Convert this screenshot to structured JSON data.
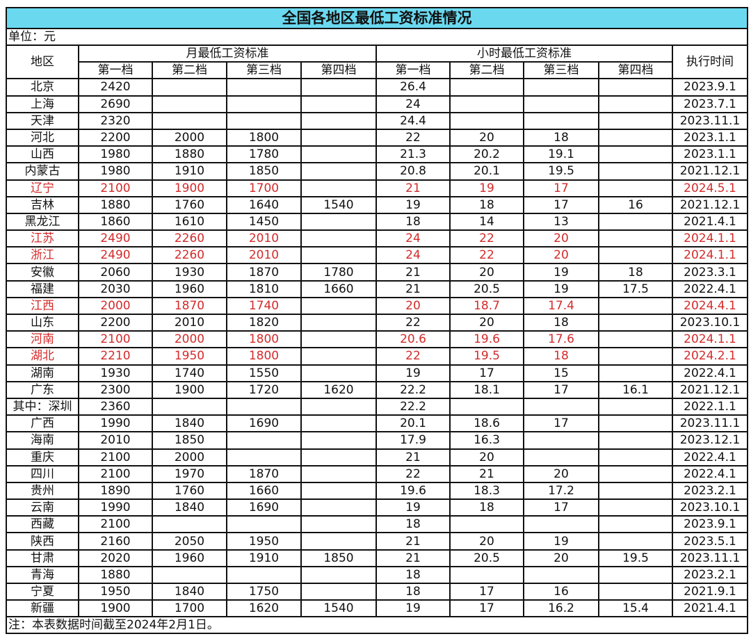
{
  "title": "全国各地区最低工资标准情况",
  "unit": "单位：元",
  "headers": {
    "region": "地区",
    "monthly": "月最低工资标准",
    "hourly": "小时最低工资标准",
    "date": "执行时间",
    "tiers": [
      "第一档",
      "第二档",
      "第三档",
      "第四档"
    ]
  },
  "highlight_color": "#d42a2a",
  "rows": [
    {
      "region": "北京",
      "monthly": [
        "2420",
        "",
        "",
        ""
      ],
      "hourly": [
        "26.4",
        "",
        "",
        ""
      ],
      "date": "2023.9.1",
      "highlight": false
    },
    {
      "region": "上海",
      "monthly": [
        "2690",
        "",
        "",
        ""
      ],
      "hourly": [
        "24",
        "",
        "",
        ""
      ],
      "date": "2023.7.1",
      "highlight": false
    },
    {
      "region": "天津",
      "monthly": [
        "2320",
        "",
        "",
        ""
      ],
      "hourly": [
        "24.4",
        "",
        "",
        ""
      ],
      "date": "2023.11.1",
      "highlight": false
    },
    {
      "region": "河北",
      "monthly": [
        "2200",
        "2000",
        "1800",
        ""
      ],
      "hourly": [
        "22",
        "20",
        "18",
        ""
      ],
      "date": "2023.1.1",
      "highlight": false
    },
    {
      "region": "山西",
      "monthly": [
        "1980",
        "1880",
        "1780",
        ""
      ],
      "hourly": [
        "21.3",
        "20.2",
        "19.1",
        ""
      ],
      "date": "2023.1.1",
      "highlight": false
    },
    {
      "region": "内蒙古",
      "monthly": [
        "1980",
        "1910",
        "1850",
        ""
      ],
      "hourly": [
        "20.8",
        "20.1",
        "19.5",
        ""
      ],
      "date": "2021.12.1",
      "highlight": false
    },
    {
      "region": "辽宁",
      "monthly": [
        "2100",
        "1900",
        "1700",
        ""
      ],
      "hourly": [
        "21",
        "19",
        "17",
        ""
      ],
      "date": "2024.5.1",
      "highlight": true
    },
    {
      "region": "吉林",
      "monthly": [
        "1880",
        "1760",
        "1640",
        "1540"
      ],
      "hourly": [
        "19",
        "18",
        "17",
        "16"
      ],
      "date": "2021.12.1",
      "highlight": false
    },
    {
      "region": "黑龙江",
      "monthly": [
        "1860",
        "1610",
        "1450",
        ""
      ],
      "hourly": [
        "18",
        "14",
        "13",
        ""
      ],
      "date": "2021.4.1",
      "highlight": false
    },
    {
      "region": "江苏",
      "monthly": [
        "2490",
        "2260",
        "2010",
        ""
      ],
      "hourly": [
        "24",
        "22",
        "20",
        ""
      ],
      "date": "2024.1.1",
      "highlight": true
    },
    {
      "region": "浙江",
      "monthly": [
        "2490",
        "2260",
        "2010",
        ""
      ],
      "hourly": [
        "24",
        "22",
        "20",
        ""
      ],
      "date": "2024.1.1",
      "highlight": true
    },
    {
      "region": "安徽",
      "monthly": [
        "2060",
        "1930",
        "1870",
        "1780"
      ],
      "hourly": [
        "21",
        "20",
        "19",
        "18"
      ],
      "date": "2023.3.1",
      "highlight": false
    },
    {
      "region": "福建",
      "monthly": [
        "2030",
        "1960",
        "1810",
        "1660"
      ],
      "hourly": [
        "21",
        "20.5",
        "19",
        "17.5"
      ],
      "date": "2022.4.1",
      "highlight": false
    },
    {
      "region": "江西",
      "monthly": [
        "2000",
        "1870",
        "1740",
        ""
      ],
      "hourly": [
        "20",
        "18.7",
        "17.4",
        ""
      ],
      "date": "2024.4.1",
      "highlight": true
    },
    {
      "region": "山东",
      "monthly": [
        "2200",
        "2010",
        "1820",
        ""
      ],
      "hourly": [
        "22",
        "20",
        "18",
        ""
      ],
      "date": "2023.10.1",
      "highlight": false
    },
    {
      "region": "河南",
      "monthly": [
        "2100",
        "2000",
        "1800",
        ""
      ],
      "hourly": [
        "20.6",
        "19.6",
        "17.6",
        ""
      ],
      "date": "2024.1.1",
      "highlight": true
    },
    {
      "region": "湖北",
      "monthly": [
        "2210",
        "1950",
        "1800",
        ""
      ],
      "hourly": [
        "22",
        "19.5",
        "18",
        ""
      ],
      "date": "2024.2.1",
      "highlight": true
    },
    {
      "region": "湖南",
      "monthly": [
        "1930",
        "1740",
        "1550",
        ""
      ],
      "hourly": [
        "19",
        "17",
        "15",
        ""
      ],
      "date": "2022.4.1",
      "highlight": false
    },
    {
      "region": "广东",
      "monthly": [
        "2300",
        "1900",
        "1720",
        "1620"
      ],
      "hourly": [
        "22.2",
        "18.1",
        "17",
        "16.1"
      ],
      "date": "2021.12.1",
      "highlight": false
    },
    {
      "region": "其中：深圳",
      "monthly": [
        "2360",
        "",
        "",
        ""
      ],
      "hourly": [
        "22.2",
        "",
        "",
        ""
      ],
      "date": "2022.1.1",
      "highlight": false
    },
    {
      "region": "广西",
      "monthly": [
        "1990",
        "1840",
        "1690",
        ""
      ],
      "hourly": [
        "20.1",
        "18.6",
        "17",
        ""
      ],
      "date": "2023.11.1",
      "highlight": false
    },
    {
      "region": "海南",
      "monthly": [
        "2010",
        "1850",
        "",
        ""
      ],
      "hourly": [
        "17.9",
        "16.3",
        "",
        ""
      ],
      "date": "2023.12.1",
      "highlight": false
    },
    {
      "region": "重庆",
      "monthly": [
        "2100",
        "2000",
        "",
        ""
      ],
      "hourly": [
        "21",
        "20",
        "",
        ""
      ],
      "date": "2022.4.1",
      "highlight": false
    },
    {
      "region": "四川",
      "monthly": [
        "2100",
        "1970",
        "1870",
        ""
      ],
      "hourly": [
        "22",
        "21",
        "20",
        ""
      ],
      "date": "2022.4.1",
      "highlight": false
    },
    {
      "region": "贵州",
      "monthly": [
        "1890",
        "1760",
        "1660",
        ""
      ],
      "hourly": [
        "19.6",
        "18.3",
        "17.2",
        ""
      ],
      "date": "2023.2.1",
      "highlight": false
    },
    {
      "region": "云南",
      "monthly": [
        "1990",
        "1840",
        "1690",
        ""
      ],
      "hourly": [
        "19",
        "18",
        "17",
        ""
      ],
      "date": "2023.10.1",
      "highlight": false
    },
    {
      "region": "西藏",
      "monthly": [
        "2100",
        "",
        "",
        ""
      ],
      "hourly": [
        "18",
        "",
        "",
        ""
      ],
      "date": "2023.9.1",
      "highlight": false
    },
    {
      "region": "陕西",
      "monthly": [
        "2160",
        "2050",
        "1950",
        ""
      ],
      "hourly": [
        "21",
        "20",
        "19",
        ""
      ],
      "date": "2023.5.1",
      "highlight": false
    },
    {
      "region": "甘肃",
      "monthly": [
        "2020",
        "1960",
        "1910",
        "1850"
      ],
      "hourly": [
        "21",
        "20.5",
        "20",
        "19.5"
      ],
      "date": "2023.11.1",
      "highlight": false
    },
    {
      "region": "青海",
      "monthly": [
        "1880",
        "",
        "",
        ""
      ],
      "hourly": [
        "18",
        "",
        "",
        ""
      ],
      "date": "2023.2.1",
      "highlight": false
    },
    {
      "region": "宁夏",
      "monthly": [
        "1950",
        "1840",
        "1750",
        ""
      ],
      "hourly": [
        "18",
        "17",
        "16",
        ""
      ],
      "date": "2021.9.1",
      "highlight": false
    },
    {
      "region": "新疆",
      "monthly": [
        "1900",
        "1700",
        "1620",
        "1540"
      ],
      "hourly": [
        "19",
        "17",
        "16.2",
        "15.4"
      ],
      "date": "2021.4.1",
      "highlight": false
    }
  ],
  "note": "注：本表数据时间截至2024年2月1日。"
}
